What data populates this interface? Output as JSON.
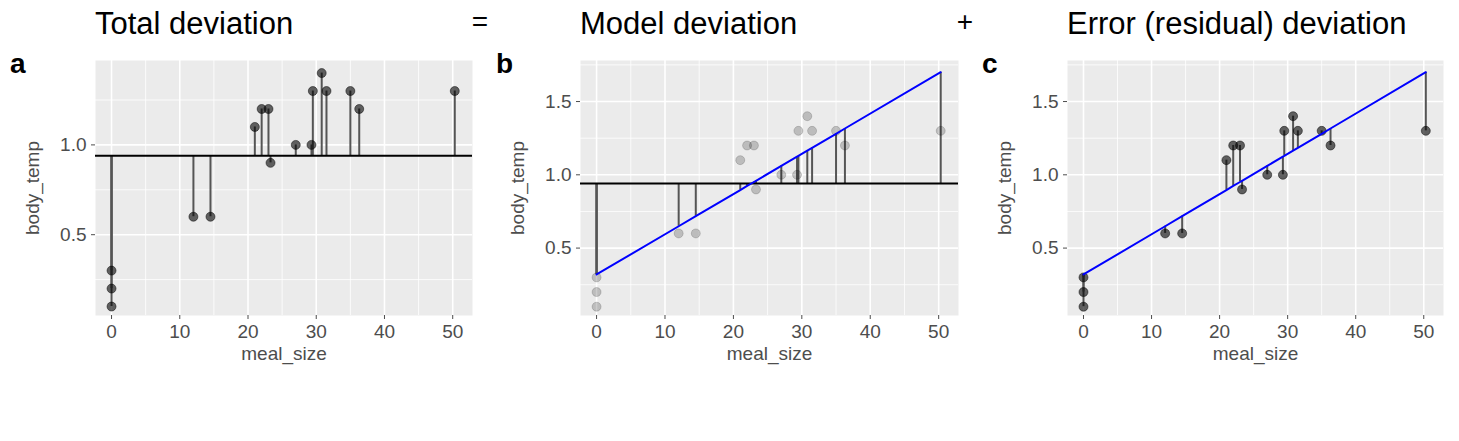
{
  "chart_data": [
    {
      "type": "scatter",
      "tag": "a",
      "title": "Total deviation",
      "annotation": "=",
      "x_label": "meal_size",
      "y_label": "body_temp",
      "x": [
        0,
        0,
        0,
        12,
        14.5,
        21,
        22,
        23,
        23.3,
        27,
        29.3,
        29.5,
        30.8,
        31.5,
        35,
        36.3,
        50.3
      ],
      "values": [
        0.3,
        0.2,
        0.1,
        0.6,
        0.6,
        1.1,
        1.2,
        1.2,
        0.9,
        1.0,
        1.0,
        1.3,
        1.4,
        1.3,
        1.3,
        1.2,
        1.3
      ],
      "mean": 0.94,
      "xlim": [
        -2.35,
        52.9
      ],
      "xticks": [
        0,
        10,
        20,
        30,
        40,
        50
      ],
      "ylim": [
        0.05,
        1.47
      ],
      "yticks": [
        {
          "value": 0.5,
          "label": "0.5"
        },
        {
          "value": 1.0,
          "label": "1.0"
        }
      ],
      "grid": true
    },
    {
      "type": "scatter",
      "tag": "b",
      "title": "Model deviation",
      "annotation": "+",
      "x_label": "meal_size",
      "y_label": "body_temp",
      "color": "#0000ff",
      "x": [
        0,
        0,
        0,
        12,
        14.5,
        21,
        22,
        23,
        23.3,
        27,
        29.3,
        29.5,
        30.8,
        31.5,
        35,
        36.3,
        50.3
      ],
      "values": [
        0.3,
        0.2,
        0.1,
        0.6,
        0.6,
        1.1,
        1.2,
        1.2,
        0.9,
        1.0,
        1.0,
        1.3,
        1.4,
        1.3,
        1.3,
        1.2,
        1.3
      ],
      "fitted": [
        0.32,
        0.32,
        0.32,
        0.649,
        0.718,
        0.896,
        0.924,
        0.951,
        0.959,
        1.061,
        1.124,
        1.129,
        1.165,
        1.184,
        1.28,
        1.316,
        1.7
      ],
      "mean": 0.94,
      "xlim": [
        -2.35,
        52.9
      ],
      "xticks": [
        0,
        10,
        20,
        30,
        40,
        50
      ],
      "ylim": [
        0.04,
        1.78
      ],
      "yticks": [
        {
          "value": 0.5,
          "label": "0.5"
        },
        {
          "value": 1.0,
          "label": "1.0"
        },
        {
          "value": 1.5,
          "label": "1.5"
        }
      ],
      "grid": true
    },
    {
      "type": "scatter",
      "tag": "c",
      "title": "Error (residual) deviation",
      "x_label": "meal_size",
      "y_label": "body_temp",
      "color": "#0000ff",
      "x": [
        0,
        0,
        0,
        12,
        14.5,
        21,
        22,
        23,
        23.3,
        27,
        29.3,
        29.5,
        30.8,
        31.5,
        35,
        36.3,
        50.3
      ],
      "values": [
        0.3,
        0.2,
        0.1,
        0.6,
        0.6,
        1.1,
        1.2,
        1.2,
        0.9,
        1.0,
        1.0,
        1.3,
        1.4,
        1.3,
        1.3,
        1.2,
        1.3
      ],
      "fitted": [
        0.32,
        0.32,
        0.32,
        0.649,
        0.718,
        0.896,
        0.924,
        0.951,
        0.959,
        1.061,
        1.124,
        1.129,
        1.165,
        1.184,
        1.28,
        1.316,
        1.7
      ],
      "xlim": [
        -2.35,
        52.9
      ],
      "xticks": [
        0,
        10,
        20,
        30,
        40,
        50
      ],
      "ylim": [
        0.04,
        1.78
      ],
      "yticks": [
        {
          "value": 0.5,
          "label": "0.5"
        },
        {
          "value": 1.0,
          "label": "1.0"
        },
        {
          "value": 1.5,
          "label": "1.5"
        }
      ],
      "grid": true
    }
  ]
}
